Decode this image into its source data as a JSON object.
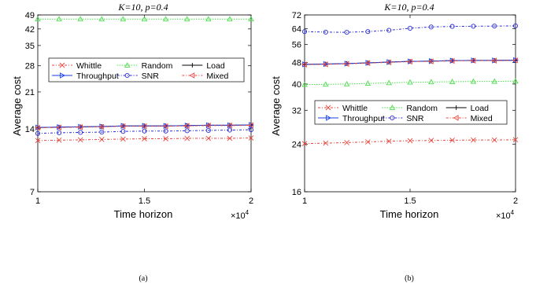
{
  "chart_data": [
    {
      "type": "line",
      "title": "K=10, p=0.4",
      "xlabel": "Time horizon",
      "ylabel": "Average cost",
      "x_multiplier": "×10^4",
      "xlim": [
        1,
        2
      ],
      "ylim": [
        7,
        49
      ],
      "y_scale": "log",
      "xticks": [
        1,
        1.5,
        2
      ],
      "xtick_labels": [
        "1",
        "1.5",
        "2"
      ],
      "yticks": [
        7,
        14,
        21,
        28,
        35,
        42,
        49
      ],
      "ytick_labels": [
        "7",
        "14",
        "21",
        "28",
        "35",
        "42",
        "49"
      ],
      "grid": false,
      "legend_position": "middle-left",
      "caption": "(a)",
      "x": [
        1,
        1.1,
        1.2,
        1.3,
        1.4,
        1.5,
        1.6,
        1.7,
        1.8,
        1.9,
        2
      ],
      "series": [
        {
          "name": "Whittle",
          "color": "#e8453c",
          "dash": "3,2,1,2",
          "marker": "x",
          "values": [
            12.3,
            12.35,
            12.4,
            12.45,
            12.5,
            12.55,
            12.55,
            12.6,
            12.6,
            12.6,
            12.65
          ]
        },
        {
          "name": "Random",
          "color": "#4ddc4d",
          "dash": "1.5,1.5",
          "marker": "triangle-up",
          "values": [
            46.8,
            46.8,
            46.8,
            46.8,
            46.8,
            46.8,
            46.8,
            46.8,
            46.8,
            46.8,
            46.8
          ]
        },
        {
          "name": "Load",
          "color": "#000000",
          "dash": "",
          "marker": "plus",
          "values": [
            14.2,
            14.25,
            14.3,
            14.35,
            14.45,
            14.45,
            14.45,
            14.5,
            14.55,
            14.55,
            14.6
          ]
        },
        {
          "name": "Throughput",
          "color": "#1a3ee8",
          "dash": "",
          "marker": "triangle-right",
          "values": [
            14.2,
            14.25,
            14.3,
            14.35,
            14.45,
            14.45,
            14.45,
            14.5,
            14.55,
            14.55,
            14.6
          ]
        },
        {
          "name": "SNR",
          "color": "#2b2bd6",
          "dash": "3,2,1,2",
          "marker": "circle",
          "values": [
            13.3,
            13.4,
            13.45,
            13.5,
            13.6,
            13.65,
            13.65,
            13.7,
            13.75,
            13.8,
            13.85
          ]
        },
        {
          "name": "Mixed",
          "color": "#e8453c",
          "dash": "3,2,1,2",
          "marker": "triangle-left",
          "values": [
            14.15,
            14.2,
            14.25,
            14.3,
            14.4,
            14.4,
            14.4,
            14.45,
            14.5,
            14.5,
            14.55
          ]
        }
      ]
    },
    {
      "type": "line",
      "title": "K=10, p=0.4",
      "xlabel": "Time horizon",
      "ylabel": "Average cost",
      "x_multiplier": "×10^4",
      "xlim": [
        1,
        2
      ],
      "ylim": [
        16,
        72
      ],
      "y_scale": "log",
      "xticks": [
        1,
        1.5,
        2
      ],
      "xtick_labels": [
        "1",
        "1.5",
        "2"
      ],
      "yticks": [
        16,
        24,
        32,
        40,
        48,
        56,
        64,
        72
      ],
      "ytick_labels": [
        "16",
        "24",
        "32",
        "40",
        "48",
        "56",
        "64",
        "72"
      ],
      "grid": false,
      "legend_position": "middle-left",
      "caption": "(b)",
      "x": [
        1,
        1.1,
        1.2,
        1.3,
        1.4,
        1.5,
        1.6,
        1.7,
        1.8,
        1.9,
        2
      ],
      "series": [
        {
          "name": "Whittle",
          "color": "#e8453c",
          "dash": "3,2,1,2",
          "marker": "x",
          "values": [
            24.1,
            24.2,
            24.3,
            24.45,
            24.6,
            24.7,
            24.75,
            24.8,
            24.85,
            24.85,
            24.9
          ]
        },
        {
          "name": "Random",
          "color": "#4ddc4d",
          "dash": "1.5,1.5",
          "marker": "triangle-up",
          "values": [
            39.8,
            39.9,
            40.0,
            40.2,
            40.4,
            40.6,
            40.7,
            40.8,
            40.9,
            40.9,
            41.0
          ]
        },
        {
          "name": "Load",
          "color": "#000000",
          "dash": "",
          "marker": "plus",
          "values": [
            47.3,
            47.4,
            47.6,
            47.9,
            48.2,
            48.5,
            48.6,
            48.8,
            48.9,
            48.9,
            49.0
          ]
        },
        {
          "name": "Throughput",
          "color": "#1a3ee8",
          "dash": "",
          "marker": "triangle-right",
          "values": [
            47.3,
            47.4,
            47.6,
            47.9,
            48.2,
            48.5,
            48.6,
            48.8,
            48.9,
            48.9,
            49.0
          ]
        },
        {
          "name": "SNR",
          "color": "#2b2bd6",
          "dash": "3,2,1,2",
          "marker": "circle",
          "values": [
            62.5,
            62.2,
            62.1,
            62.5,
            63.2,
            64.3,
            65.0,
            65.3,
            65.4,
            65.5,
            65.6
          ]
        },
        {
          "name": "Mixed",
          "color": "#e8453c",
          "dash": "3,2,1,2",
          "marker": "triangle-left",
          "values": [
            47.2,
            47.3,
            47.5,
            47.8,
            48.1,
            48.4,
            48.5,
            48.7,
            48.8,
            48.8,
            48.9
          ]
        }
      ]
    }
  ]
}
